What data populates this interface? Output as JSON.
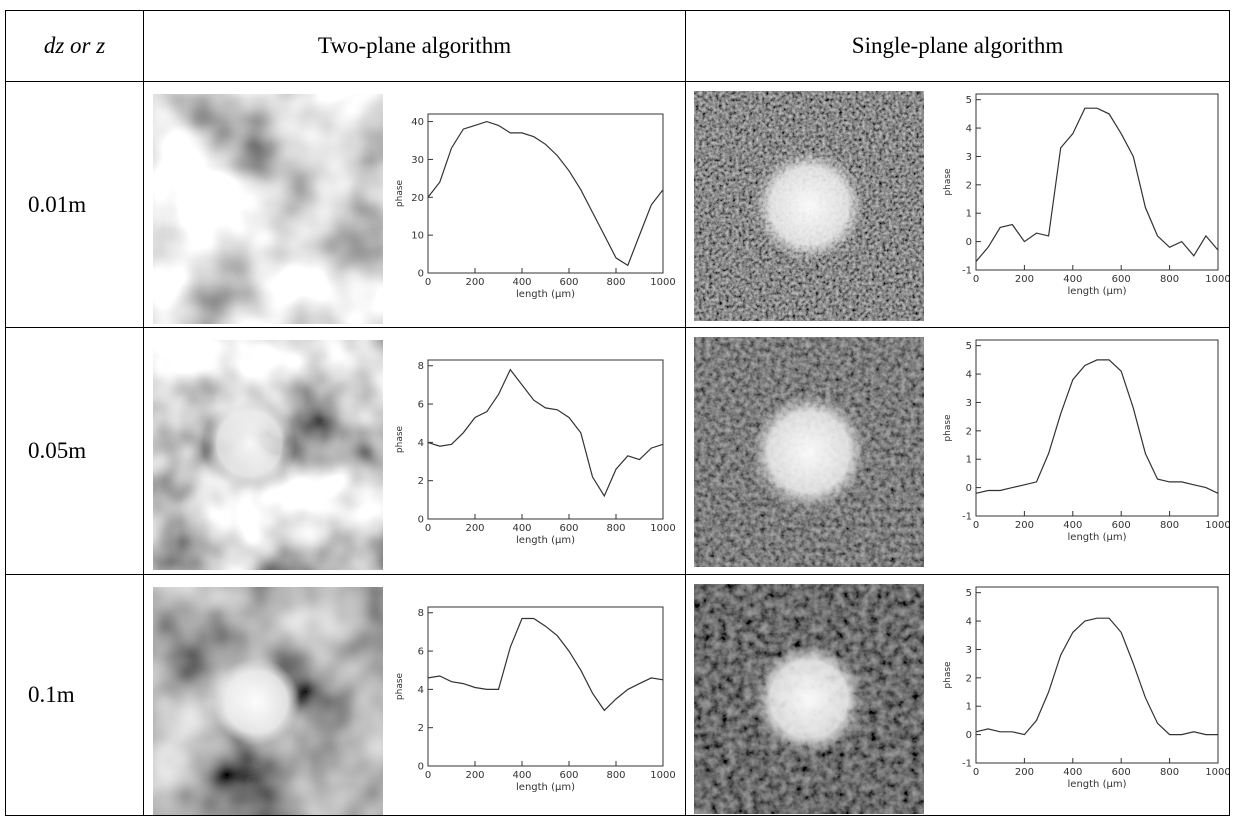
{
  "table": {
    "header": [
      "dz or z",
      "Two-plane algorithm",
      "Single-plane algorithm"
    ],
    "rows": [
      "0.01m",
      "0.05m",
      "0.1m"
    ]
  },
  "chart_data": [
    {
      "type": "line",
      "xlabel": "length (μm)",
      "ylabel": "phase",
      "color": "#333333",
      "x": [
        0,
        50,
        100,
        150,
        200,
        250,
        300,
        350,
        400,
        450,
        500,
        550,
        600,
        650,
        700,
        750,
        800,
        850,
        900,
        950,
        1000
      ],
      "values": [
        20,
        24,
        33,
        38,
        39,
        40,
        39,
        37,
        37,
        36,
        34,
        31,
        27,
        22,
        16,
        10,
        4,
        2,
        10,
        18,
        22
      ],
      "xlim": [
        0,
        1000
      ],
      "xticks": [
        0,
        200,
        400,
        600,
        800,
        1000
      ],
      "ylim": [
        0,
        42
      ],
      "yticks": [
        0,
        10,
        20,
        30,
        40
      ]
    },
    {
      "type": "line",
      "xlabel": "length (μm)",
      "ylabel": "phase",
      "color": "#333333",
      "x": [
        0,
        50,
        100,
        150,
        200,
        250,
        300,
        350,
        400,
        450,
        500,
        550,
        600,
        650,
        700,
        750,
        800,
        850,
        900,
        950,
        1000
      ],
      "values": [
        -0.7,
        -0.2,
        0.5,
        0.6,
        0,
        0.3,
        0.2,
        3.3,
        3.8,
        4.7,
        4.7,
        4.5,
        3.8,
        3.0,
        1.2,
        0.2,
        -0.2,
        0,
        -0.5,
        0.2,
        -0.3
      ],
      "xlim": [
        0,
        1000
      ],
      "xticks": [
        0,
        200,
        400,
        600,
        800,
        1000
      ],
      "ylim": [
        -1,
        5.2
      ],
      "yticks": [
        -1,
        0,
        1,
        2,
        3,
        4,
        5
      ]
    },
    {
      "type": "line",
      "xlabel": "length (μm)",
      "ylabel": "phase",
      "color": "#333333",
      "x": [
        0,
        50,
        100,
        150,
        200,
        250,
        300,
        350,
        400,
        450,
        500,
        550,
        600,
        650,
        700,
        750,
        800,
        850,
        900,
        950,
        1000
      ],
      "values": [
        4,
        3.8,
        3.9,
        4.5,
        5.3,
        5.6,
        6.5,
        7.8,
        7.0,
        6.2,
        5.8,
        5.7,
        5.3,
        4.5,
        2.2,
        1.2,
        2.6,
        3.3,
        3.1,
        3.7,
        3.9
      ],
      "xlim": [
        0,
        1000
      ],
      "xticks": [
        0,
        200,
        400,
        600,
        800,
        1000
      ],
      "ylim": [
        0,
        8.3
      ],
      "yticks": [
        0,
        2,
        4,
        6,
        8
      ]
    },
    {
      "type": "line",
      "xlabel": "length (μm)",
      "ylabel": "phase",
      "color": "#333333",
      "x": [
        0,
        50,
        100,
        150,
        200,
        250,
        300,
        350,
        400,
        450,
        500,
        550,
        600,
        650,
        700,
        750,
        800,
        850,
        900,
        950,
        1000
      ],
      "values": [
        -0.2,
        -0.1,
        -0.1,
        0,
        0.1,
        0.2,
        1.2,
        2.6,
        3.8,
        4.3,
        4.5,
        4.5,
        4.1,
        2.8,
        1.2,
        0.3,
        0.2,
        0.2,
        0.1,
        0,
        -0.2
      ],
      "xlim": [
        0,
        1000
      ],
      "xticks": [
        0,
        200,
        400,
        600,
        800,
        1000
      ],
      "ylim": [
        -1,
        5.2
      ],
      "yticks": [
        -1,
        0,
        1,
        2,
        3,
        4,
        5
      ]
    },
    {
      "type": "line",
      "xlabel": "length (μm)",
      "ylabel": "phase",
      "color": "#333333",
      "x": [
        0,
        50,
        100,
        150,
        200,
        250,
        300,
        350,
        400,
        450,
        500,
        550,
        600,
        650,
        700,
        750,
        800,
        850,
        900,
        950,
        1000
      ],
      "values": [
        4.6,
        4.7,
        4.4,
        4.3,
        4.1,
        4.0,
        4.0,
        6.2,
        7.7,
        7.7,
        7.3,
        6.8,
        6.0,
        5.0,
        3.8,
        2.9,
        3.5,
        4.0,
        4.3,
        4.6,
        4.5
      ],
      "xlim": [
        0,
        1000
      ],
      "xticks": [
        0,
        200,
        400,
        600,
        800,
        1000
      ],
      "ylim": [
        0,
        8.3
      ],
      "yticks": [
        0,
        2,
        4,
        6,
        8
      ]
    },
    {
      "type": "line",
      "xlabel": "length (μm)",
      "ylabel": "phase",
      "color": "#333333",
      "x": [
        0,
        50,
        100,
        150,
        200,
        250,
        300,
        350,
        400,
        450,
        500,
        550,
        600,
        650,
        700,
        750,
        800,
        850,
        900,
        950,
        1000
      ],
      "values": [
        0.1,
        0.2,
        0.1,
        0.1,
        0,
        0.5,
        1.5,
        2.8,
        3.6,
        4.0,
        4.1,
        4.1,
        3.6,
        2.5,
        1.3,
        0.4,
        0,
        0,
        0.1,
        0,
        0
      ],
      "xlim": [
        0,
        1000
      ],
      "xticks": [
        0,
        200,
        400,
        600,
        800,
        1000
      ],
      "ylim": [
        -1,
        5.2
      ],
      "yticks": [
        -1,
        0,
        1,
        2,
        3,
        4,
        5
      ]
    }
  ]
}
